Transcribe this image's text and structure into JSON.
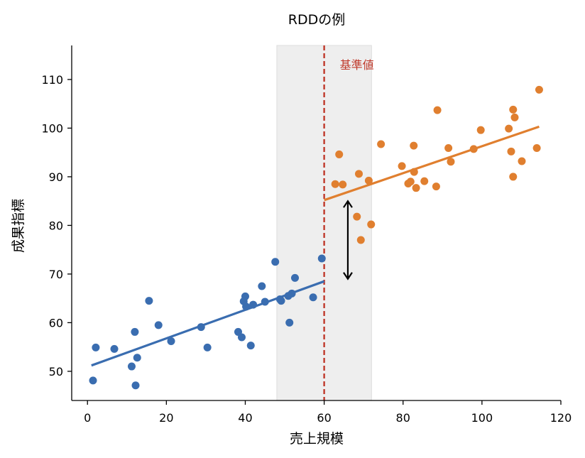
{
  "chart_data": {
    "type": "scatter",
    "title": "RDDの例",
    "xlabel": "売上規模",
    "ylabel": "成果指標",
    "xlim": [
      -4,
      120
    ],
    "ylim": [
      44,
      117
    ],
    "xticks": [
      0,
      20,
      40,
      60,
      80,
      100,
      120
    ],
    "yticks": [
      50,
      60,
      70,
      80,
      90,
      100,
      110
    ],
    "grid": false,
    "threshold": {
      "x": 60,
      "label": "基準値",
      "color": "#c0392b"
    },
    "bandwidth": [
      48,
      72
    ],
    "jump_arrow": {
      "x": 66,
      "y_from": 69,
      "y_to": 85
    },
    "series": [
      {
        "color": "#3a6db0",
        "points": [
          [
            1.4,
            48.1
          ],
          [
            2.1,
            54.9
          ],
          [
            6.8,
            54.6
          ],
          [
            11.2,
            51.0
          ],
          [
            12.0,
            58.1
          ],
          [
            12.2,
            47.1
          ],
          [
            12.6,
            52.8
          ],
          [
            15.6,
            64.5
          ],
          [
            18.0,
            59.5
          ],
          [
            21.2,
            56.2
          ],
          [
            28.8,
            59.1
          ],
          [
            30.4,
            54.9
          ],
          [
            38.2,
            58.1
          ],
          [
            39.1,
            57.0
          ],
          [
            39.6,
            64.4
          ],
          [
            40.0,
            65.4
          ],
          [
            40.2,
            63.3
          ],
          [
            41.4,
            55.3
          ],
          [
            42.0,
            63.7
          ],
          [
            44.2,
            67.5
          ],
          [
            45.0,
            64.3
          ],
          [
            47.6,
            72.5
          ],
          [
            48.8,
            64.8
          ],
          [
            49.1,
            64.5
          ],
          [
            50.9,
            65.5
          ],
          [
            51.2,
            60.0
          ],
          [
            51.8,
            66.0
          ],
          [
            52.6,
            69.2
          ],
          [
            57.2,
            65.2
          ],
          [
            59.4,
            73.2
          ]
        ],
        "fit": [
          [
            1,
            51.2
          ],
          [
            60,
            68.5
          ]
        ]
      },
      {
        "color": "#e07f2f",
        "points": [
          [
            62.8,
            88.5
          ],
          [
            63.8,
            94.6
          ],
          [
            64.7,
            88.4
          ],
          [
            68.3,
            81.8
          ],
          [
            68.8,
            90.6
          ],
          [
            69.3,
            77.0
          ],
          [
            71.3,
            89.2
          ],
          [
            71.9,
            80.2
          ],
          [
            74.4,
            96.7
          ],
          [
            79.7,
            92.2
          ],
          [
            81.3,
            88.6
          ],
          [
            81.9,
            89.0
          ],
          [
            82.7,
            96.4
          ],
          [
            82.8,
            91.0
          ],
          [
            83.3,
            87.7
          ],
          [
            85.4,
            89.1
          ],
          [
            88.4,
            88.0
          ],
          [
            88.7,
            103.7
          ],
          [
            91.5,
            95.9
          ],
          [
            92.1,
            93.1
          ],
          [
            97.9,
            95.7
          ],
          [
            99.7,
            99.6
          ],
          [
            106.8,
            99.9
          ],
          [
            107.4,
            95.2
          ],
          [
            107.9,
            103.8
          ],
          [
            107.9,
            90.0
          ],
          [
            108.3,
            102.2
          ],
          [
            110.1,
            93.2
          ],
          [
            113.9,
            95.9
          ],
          [
            114.5,
            107.9
          ]
        ],
        "fit": [
          [
            60,
            85.2
          ],
          [
            114.5,
            100.3
          ]
        ]
      }
    ]
  }
}
